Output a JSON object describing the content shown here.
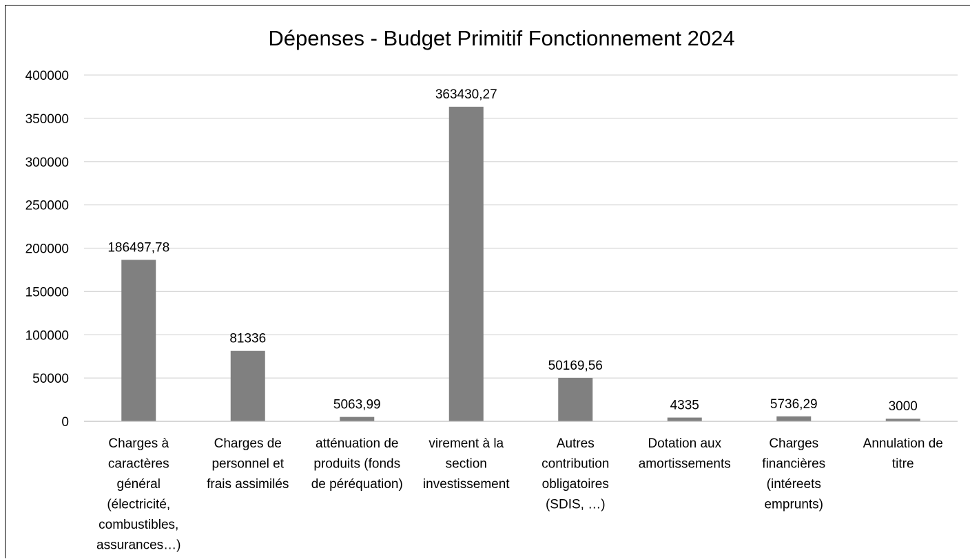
{
  "chart_data": {
    "type": "bar",
    "title": "Dépenses - Budget Primitif Fonctionnement 2024",
    "xlabel": "",
    "ylabel": "",
    "ylim": [
      0,
      400000
    ],
    "yticks": [
      0,
      50000,
      100000,
      150000,
      200000,
      250000,
      300000,
      350000,
      400000
    ],
    "ytick_labels": [
      "0",
      "50000",
      "100000",
      "150000",
      "200000",
      "250000",
      "300000",
      "350000",
      "400000"
    ],
    "grid": true,
    "legend": "none",
    "bar_color": "#808080",
    "categories": [
      "Charges à caractères général (électricité, combustibles, assurances…)",
      "Charges de personnel et frais assimilés",
      "atténuation de produits (fonds de péréquation)",
      "virement à la section investissement",
      "Autres contribution obligatoires (SDIS, …)",
      "Dotation aux amortissements",
      "Charges financières (intéreets emprunts)",
      "Annulation de titre"
    ],
    "category_lines": [
      [
        "Charges à",
        "caractères",
        "général",
        "(électricité,",
        "combustibles,",
        "assurances…)"
      ],
      [
        "Charges de",
        "personnel et",
        "frais assimilés"
      ],
      [
        "atténuation de",
        "produits (fonds",
        "de péréquation)"
      ],
      [
        "virement à la",
        "section",
        "investissement"
      ],
      [
        "Autres",
        "contribution",
        "obligatoires",
        "(SDIS, …)"
      ],
      [
        "Dotation aux",
        "amortissements"
      ],
      [
        "Charges",
        "financières",
        "(intéreets",
        "emprunts)"
      ],
      [
        "Annulation de",
        "titre"
      ]
    ],
    "values": [
      186497.78,
      81336,
      5063.99,
      363430.27,
      50169.56,
      4335,
      5736.29,
      3000
    ],
    "data_labels": [
      "186497,78",
      "81336",
      "5063,99",
      "363430,27",
      "50169,56",
      "4335",
      "5736,29",
      "3000"
    ]
  }
}
